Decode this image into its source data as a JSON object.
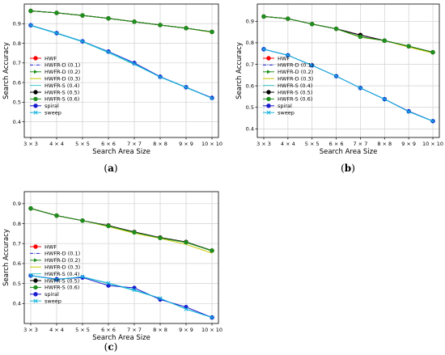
{
  "chart_data": [
    {
      "type": "line",
      "caption_letter": "a",
      "xlabel": "Search Area Size",
      "ylabel": "Search Accuracy",
      "categories": [
        "3 × 3",
        "4 × 4",
        "5 × 5",
        "6 × 6",
        "7 × 7",
        "8 × 8",
        "9 × 9",
        "10 × 10"
      ],
      "yticks": [
        0.4,
        0.5,
        0.6,
        0.7,
        0.8,
        0.9
      ],
      "ylim": [
        0.32,
        1.0
      ],
      "grid": true,
      "legend_position": "lower-left",
      "series": [
        {
          "name": "HWF",
          "color": "#ff0000",
          "marker": "circle",
          "dash": "solid",
          "values": [
            0.965,
            0.955,
            0.942,
            0.927,
            0.91,
            0.893,
            0.877,
            0.858
          ]
        },
        {
          "name": "HWFR-D (0.1)",
          "color": "#1f1fd0",
          "marker": "none",
          "dash": "dashdot",
          "values": [
            0.965,
            0.955,
            0.942,
            0.927,
            0.91,
            0.893,
            0.877,
            0.858
          ]
        },
        {
          "name": "HWFR-D (0.2)",
          "color": "#1f8f1f",
          "marker": "triangle",
          "dash": "solid",
          "values": [
            0.965,
            0.955,
            0.942,
            0.927,
            0.91,
            0.893,
            0.877,
            0.858
          ]
        },
        {
          "name": "HWFR-D (0.3)",
          "color": "#c8c800",
          "marker": "none",
          "dash": "solid",
          "values": [
            0.965,
            0.955,
            0.942,
            0.927,
            0.91,
            0.893,
            0.877,
            0.856
          ]
        },
        {
          "name": "HWFR-S (0.4)",
          "color": "#40c8c8",
          "marker": "none",
          "dash": "solid",
          "values": [
            0.89,
            0.85,
            0.808,
            0.752,
            0.692,
            0.628,
            0.574,
            0.52
          ]
        },
        {
          "name": "HWFR-S (0.5)",
          "color": "#000000",
          "marker": "circle",
          "dash": "solid",
          "values": [
            0.965,
            0.955,
            0.942,
            0.927,
            0.91,
            0.893,
            0.877,
            0.858
          ]
        },
        {
          "name": "HWFR-S (0.6)",
          "color": "#1f8f1f",
          "marker": "circle",
          "dash": "solid",
          "values": [
            0.965,
            0.955,
            0.942,
            0.927,
            0.91,
            0.893,
            0.877,
            0.858
          ]
        },
        {
          "name": "spiral",
          "color": "#1a1ad0",
          "marker": "circle",
          "dash": "solid",
          "values": [
            0.892,
            0.852,
            0.81,
            0.758,
            0.7,
            0.63,
            0.576,
            0.522
          ]
        },
        {
          "name": "sweep",
          "color": "#18b4dc",
          "marker": "x",
          "dash": "solid",
          "values": [
            0.892,
            0.852,
            0.81,
            0.756,
            0.696,
            0.628,
            0.576,
            0.52
          ]
        }
      ]
    },
    {
      "type": "line",
      "caption_letter": "b",
      "xlabel": "Search Area Size",
      "ylabel": "Search Accuracy",
      "categories": [
        "3 × 3",
        "4 × 4",
        "5 × 5",
        "6 × 6",
        "7 × 7",
        "8 × 8",
        "9 × 9",
        "10 × 10"
      ],
      "yticks": [
        0.4,
        0.5,
        0.6,
        0.7,
        0.8,
        0.9
      ],
      "ylim": [
        0.36,
        0.98
      ],
      "grid": true,
      "legend_position": "lower-left",
      "series": [
        {
          "name": "HWF",
          "color": "#ff0000",
          "marker": "circle",
          "dash": "solid",
          "values": [
            0.922,
            0.912,
            0.887,
            0.865,
            0.836,
            0.81,
            0.784,
            0.756
          ]
        },
        {
          "name": "HWFR-D (0.1)",
          "color": "#1f1fd0",
          "marker": "none",
          "dash": "dashdot",
          "values": [
            0.922,
            0.912,
            0.887,
            0.865,
            0.836,
            0.81,
            0.784,
            0.756
          ]
        },
        {
          "name": "HWFR-D (0.2)",
          "color": "#1f8f1f",
          "marker": "triangle",
          "dash": "solid",
          "values": [
            0.922,
            0.912,
            0.887,
            0.865,
            0.826,
            0.81,
            0.784,
            0.756
          ]
        },
        {
          "name": "HWFR-D (0.3)",
          "color": "#c8c800",
          "marker": "none",
          "dash": "solid",
          "values": [
            0.922,
            0.912,
            0.887,
            0.865,
            0.826,
            0.81,
            0.78,
            0.752
          ]
        },
        {
          "name": "HWFR-S (0.4)",
          "color": "#40c8c8",
          "marker": "none",
          "dash": "solid",
          "values": [
            0.77,
            0.742,
            0.695,
            0.645,
            0.59,
            0.538,
            0.48,
            0.435
          ]
        },
        {
          "name": "HWFR-S (0.5)",
          "color": "#000000",
          "marker": "circle",
          "dash": "solid",
          "values": [
            0.922,
            0.912,
            0.887,
            0.865,
            0.836,
            0.81,
            0.784,
            0.756
          ]
        },
        {
          "name": "HWFR-S (0.6)",
          "color": "#1f8f1f",
          "marker": "circle",
          "dash": "solid",
          "values": [
            0.922,
            0.912,
            0.887,
            0.865,
            0.828,
            0.81,
            0.784,
            0.756
          ]
        },
        {
          "name": "spiral",
          "color": "#1a1ad0",
          "marker": "circle",
          "dash": "solid",
          "values": [
            0.77,
            0.742,
            0.695,
            0.645,
            0.59,
            0.538,
            0.482,
            0.436
          ]
        },
        {
          "name": "sweep",
          "color": "#18b4dc",
          "marker": "x",
          "dash": "solid",
          "values": [
            0.77,
            0.742,
            0.695,
            0.645,
            0.59,
            0.538,
            0.48,
            0.436
          ]
        }
      ]
    },
    {
      "type": "line",
      "caption_letter": "c",
      "xlabel": "Search Area Size",
      "ylabel": "Search Accuracy",
      "categories": [
        "3 × 3",
        "4 × 4",
        "5 × 5",
        "6 × 6",
        "7 × 7",
        "8 × 8",
        "9 × 9",
        "10 × 10"
      ],
      "yticks": [
        0.4,
        0.5,
        0.6,
        0.7,
        0.8,
        0.9
      ],
      "ylim": [
        0.3,
        0.96
      ],
      "grid": true,
      "legend_position": "lower-left",
      "series": [
        {
          "name": "HWF",
          "color": "#ff0000",
          "marker": "circle",
          "dash": "solid",
          "values": [
            0.876,
            0.84,
            0.815,
            0.79,
            0.758,
            0.73,
            0.708,
            0.665
          ]
        },
        {
          "name": "HWFR-D (0.1)",
          "color": "#1f1fd0",
          "marker": "none",
          "dash": "dashdot",
          "values": [
            0.876,
            0.84,
            0.815,
            0.79,
            0.758,
            0.73,
            0.708,
            0.665
          ]
        },
        {
          "name": "HWFR-D (0.2)",
          "color": "#1f8f1f",
          "marker": "triangle",
          "dash": "solid",
          "values": [
            0.876,
            0.84,
            0.815,
            0.788,
            0.756,
            0.728,
            0.706,
            0.663
          ]
        },
        {
          "name": "HWFR-D (0.3)",
          "color": "#c8c800",
          "marker": "none",
          "dash": "solid",
          "values": [
            0.876,
            0.84,
            0.815,
            0.785,
            0.752,
            0.726,
            0.696,
            0.652
          ]
        },
        {
          "name": "HWFR-S (0.4)",
          "color": "#40c8c8",
          "marker": "none",
          "dash": "solid",
          "values": [
            0.54,
            0.52,
            0.532,
            0.5,
            0.465,
            0.425,
            0.372,
            0.33
          ]
        },
        {
          "name": "HWFR-S (0.5)",
          "color": "#000000",
          "marker": "circle",
          "dash": "solid",
          "values": [
            0.876,
            0.84,
            0.815,
            0.79,
            0.758,
            0.73,
            0.708,
            0.665
          ]
        },
        {
          "name": "HWFR-S (0.6)",
          "color": "#1f8f1f",
          "marker": "circle",
          "dash": "solid",
          "values": [
            0.876,
            0.84,
            0.815,
            0.788,
            0.756,
            0.728,
            0.706,
            0.665
          ]
        },
        {
          "name": "spiral",
          "color": "#1a1ad0",
          "marker": "circle",
          "dash": "solid",
          "values": [
            0.54,
            0.522,
            0.53,
            0.49,
            0.478,
            0.42,
            0.382,
            0.33
          ]
        },
        {
          "name": "sweep",
          "color": "#18b4dc",
          "marker": "x",
          "dash": "solid",
          "values": [
            0.54,
            0.52,
            0.534,
            0.502,
            0.468,
            0.426,
            0.372,
            0.33
          ]
        }
      ]
    }
  ]
}
